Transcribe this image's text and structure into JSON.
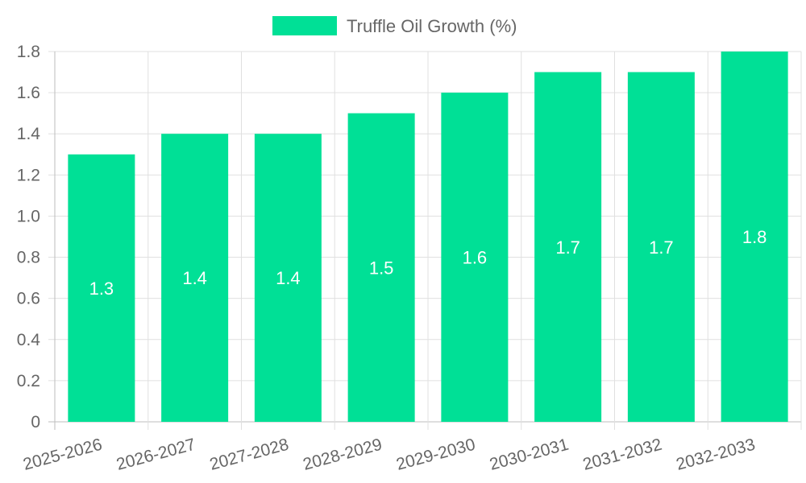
{
  "chart_data": {
    "type": "bar",
    "title": "",
    "xlabel": "",
    "ylabel": "",
    "categories": [
      "2025-2026",
      "2026-2027",
      "2027-2028",
      "2028-2029",
      "2029-2030",
      "2030-2031",
      "2031-2032",
      "2032-2033"
    ],
    "series": [
      {
        "name": "Truffle Oil Growth (%)",
        "values": [
          1.3,
          1.4,
          1.4,
          1.5,
          1.6,
          1.7,
          1.7,
          1.8
        ],
        "color": "#00e096"
      }
    ],
    "ylim": [
      0,
      1.8
    ],
    "yticks": [
      "0",
      "0.2",
      "0.4",
      "0.6",
      "0.8",
      "1.0",
      "1.2",
      "1.4",
      "1.6",
      "1.8"
    ],
    "data_labels": [
      "1.3",
      "1.4",
      "1.4",
      "1.5",
      "1.6",
      "1.7",
      "1.7",
      "1.8"
    ],
    "grid": true,
    "legend_position": "top-center"
  }
}
